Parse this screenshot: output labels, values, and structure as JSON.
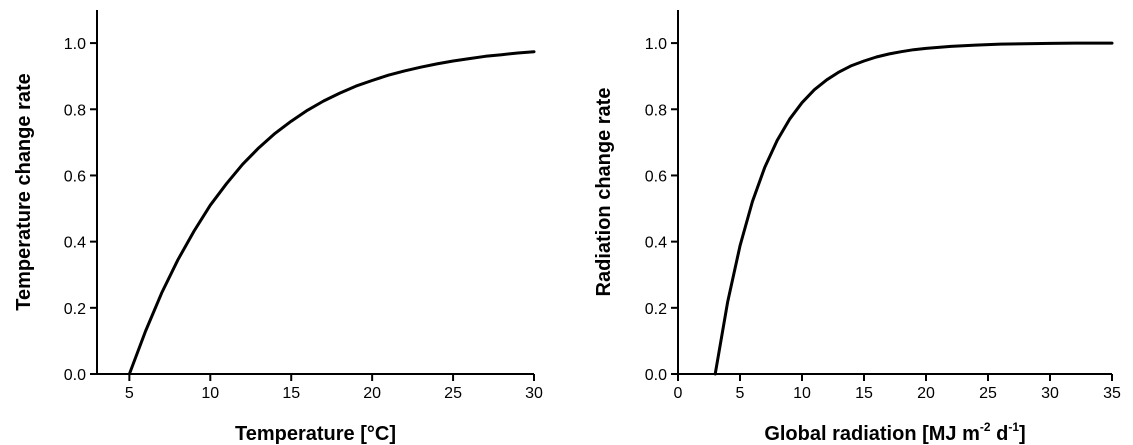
{
  "chart_data": [
    {
      "type": "line",
      "xlabel": "Temperature [°C]",
      "ylabel": "Temperature change rate",
      "xlim": [
        3,
        30
      ],
      "ylim": [
        0,
        1.1
      ],
      "x_ticks": [
        "5",
        "10",
        "15",
        "20",
        "25",
        "30"
      ],
      "y_ticks": [
        "0.0",
        "0.2",
        "0.4",
        "0.6",
        "0.8",
        "1.0"
      ],
      "grid": false,
      "series": [
        {
          "x": [
            5,
            6,
            7,
            8,
            9,
            10,
            11,
            12,
            13,
            14,
            15,
            16,
            17,
            18,
            19,
            20,
            21,
            22,
            23,
            24,
            25,
            26,
            27,
            28,
            29,
            30
          ],
          "y": [
            0.0,
            0.13,
            0.245,
            0.345,
            0.432,
            0.51,
            0.575,
            0.634,
            0.684,
            0.727,
            0.764,
            0.797,
            0.825,
            0.849,
            0.87,
            0.887,
            0.903,
            0.916,
            0.927,
            0.937,
            0.946,
            0.953,
            0.96,
            0.965,
            0.97,
            0.974
          ]
        }
      ]
    },
    {
      "type": "line",
      "xlabel": "Global radiation [MJ m",
      "xlabel_sup1": "-2",
      "xlabel_mid": " d",
      "xlabel_sup2": "-1",
      "xlabel_end": "]",
      "ylabel": "Radiation change rate",
      "xlim": [
        0,
        35
      ],
      "ylim": [
        0,
        1.1
      ],
      "x_ticks": [
        "0",
        "5",
        "10",
        "15",
        "20",
        "25",
        "30",
        "35"
      ],
      "y_ticks": [
        "0.0",
        "0.2",
        "0.4",
        "0.6",
        "0.8",
        "1.0"
      ],
      "grid": false,
      "series": [
        {
          "x": [
            3,
            4,
            5,
            6,
            7,
            8,
            9,
            10,
            11,
            12,
            13,
            14,
            15,
            16,
            17,
            18,
            19,
            20,
            22,
            24,
            26,
            28,
            30,
            32,
            35
          ],
          "y": [
            0.0,
            0.217,
            0.387,
            0.521,
            0.625,
            0.706,
            0.77,
            0.82,
            0.859,
            0.889,
            0.913,
            0.932,
            0.946,
            0.958,
            0.967,
            0.974,
            0.98,
            0.984,
            0.99,
            0.994,
            0.997,
            0.998,
            0.999,
            1.0,
            1.0
          ]
        }
      ]
    }
  ]
}
